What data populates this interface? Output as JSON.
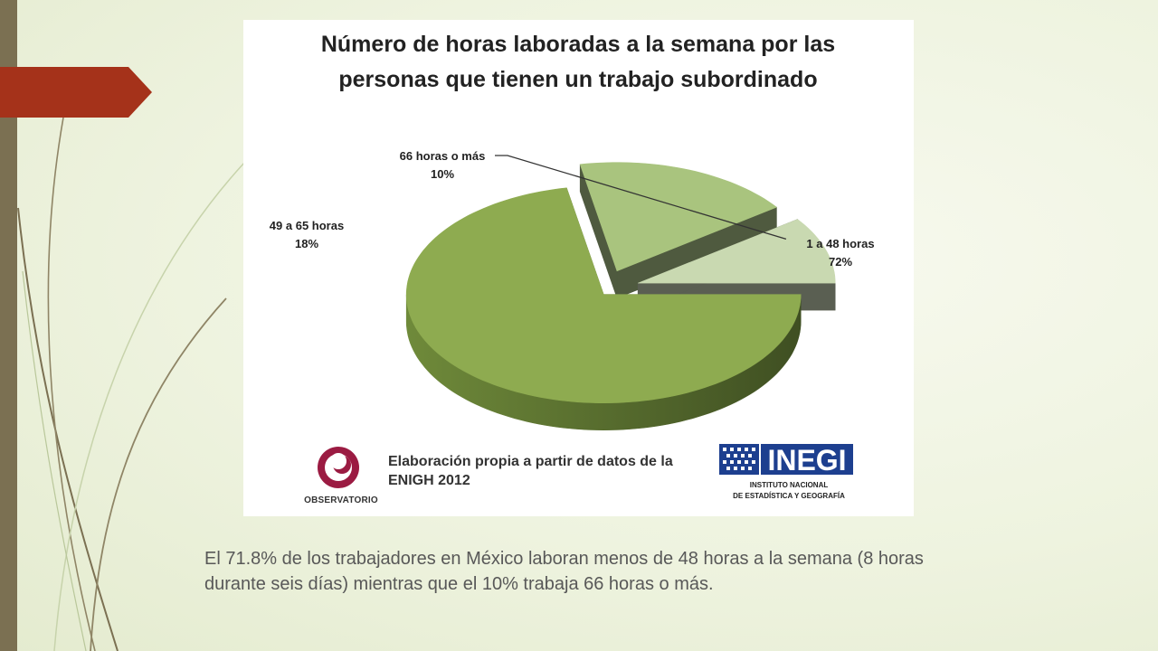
{
  "slide": {
    "caption": "El 71.8% de los trabajadores en México laboran menos de 48 horas a la semana (8 horas durante seis días) mientras que el 10% trabaja 66 horas o más."
  },
  "chart_data": {
    "type": "pie",
    "title": "Número de horas laboradas a la semana por las personas que tienen un trabajo subordinado",
    "labels": [
      "1 a 48 horas",
      "49 a 65 horas",
      "66 horas o más"
    ],
    "values": [
      72,
      18,
      10
    ],
    "value_labels": [
      "72%",
      "18%",
      "10%"
    ],
    "colors": [
      "#8eab50",
      "#a9c47e",
      "#c9d9b1"
    ],
    "exploded": true,
    "three_d": true
  },
  "source": {
    "text": "Elaboración propia a partir de datos de la ENIGH 2012",
    "observatorio_label": "OBSERVATORIO",
    "inegi_name": "INEGI",
    "inegi_line1": "INSTITUTO NACIONAL",
    "inegi_line2": "DE ESTADÍSTICA Y GEOGRAFÍA"
  },
  "colors": {
    "sidebar": "#7b7052",
    "accent_arrow": "#a5321a",
    "observatorio": "#9b1b42",
    "inegi": "#1d3f8f"
  }
}
